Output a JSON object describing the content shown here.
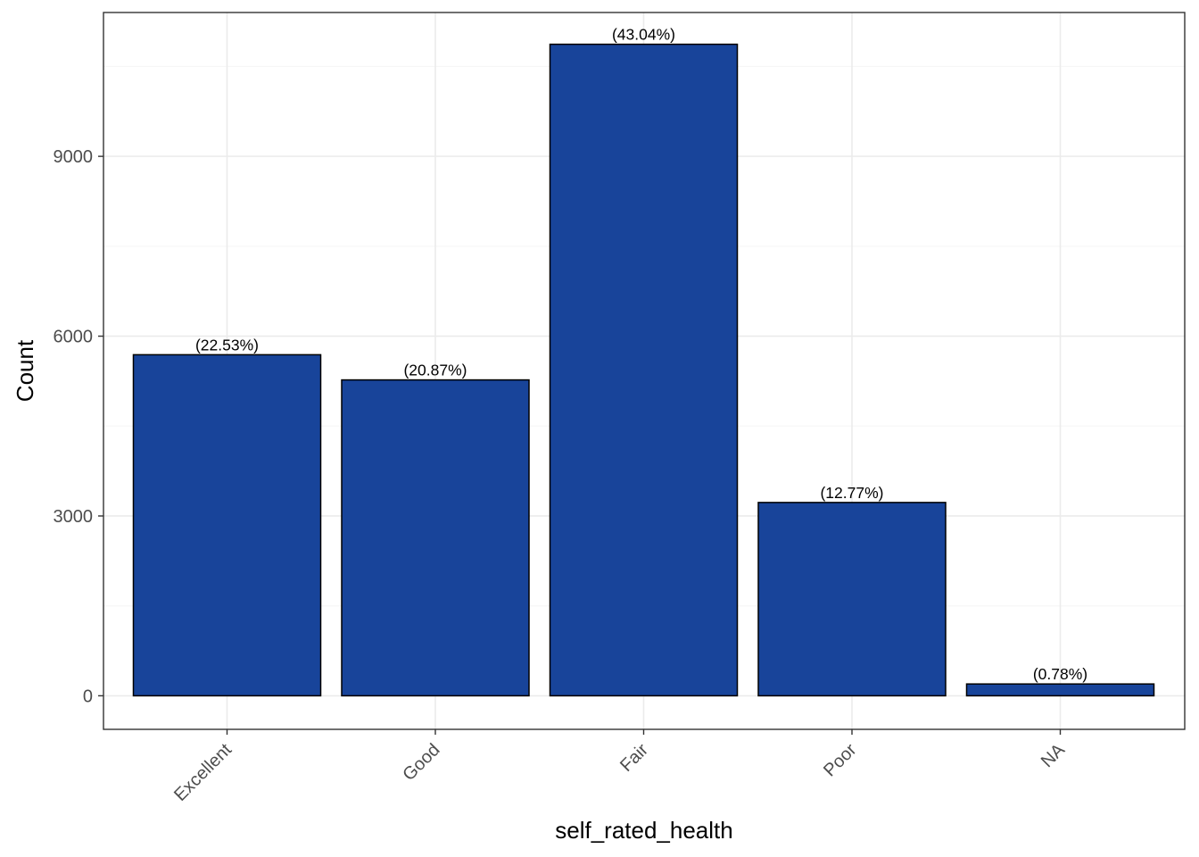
{
  "chart_data": {
    "type": "bar",
    "categories": [
      "Excellent",
      "Good",
      "Fair",
      "Poor",
      "NA"
    ],
    "values": [
      5690,
      5270,
      10870,
      3225,
      197
    ],
    "labels": [
      "(22.53%)",
      "(20.87%)",
      "(43.04%)",
      "(12.77%)",
      "(0.78%)"
    ],
    "xlabel": "self_rated_health",
    "ylabel": "Count",
    "ylim": [
      -560,
      11400
    ],
    "yticks": [
      0,
      3000,
      6000,
      9000
    ],
    "ytick_labels": [
      "0",
      "3000",
      "6000",
      "9000"
    ],
    "grid": true,
    "x_tick_rotation_deg": 45,
    "colors": {
      "bar_fill": "#18449A",
      "bar_stroke": "#000000",
      "grid_major": "#EBEBEB",
      "grid_minor": "#F5F5F5",
      "panel_border": "#333333"
    }
  }
}
